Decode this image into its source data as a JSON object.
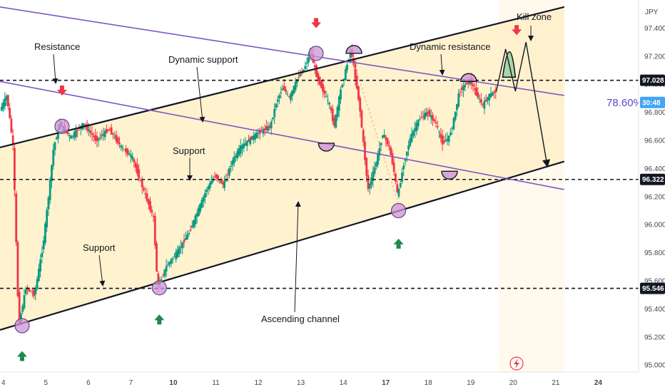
{
  "chart_data": {
    "type": "candlestick",
    "instrument_currency": "JPY",
    "yticks": [
      95.0,
      95.2,
      95.4,
      95.6,
      95.8,
      96.0,
      96.2,
      96.4,
      96.6,
      96.8,
      97.0,
      97.2,
      97.4
    ],
    "ylim": [
      94.95,
      97.6
    ],
    "xticks": [
      {
        "label": "4",
        "x": 4.0,
        "bold": false
      },
      {
        "label": "5",
        "x": 5.0,
        "bold": false
      },
      {
        "label": "6",
        "x": 6.0,
        "bold": false
      },
      {
        "label": "7",
        "x": 7.0,
        "bold": false
      },
      {
        "label": "10",
        "x": 8.0,
        "bold": true
      },
      {
        "label": "11",
        "x": 9.0,
        "bold": false
      },
      {
        "label": "12",
        "x": 10.0,
        "bold": false
      },
      {
        "label": "13",
        "x": 11.0,
        "bold": false
      },
      {
        "label": "14",
        "x": 12.0,
        "bold": false
      },
      {
        "label": "17",
        "x": 13.0,
        "bold": true
      },
      {
        "label": "18",
        "x": 14.0,
        "bold": false
      },
      {
        "label": "19",
        "x": 15.0,
        "bold": false
      },
      {
        "label": "20",
        "x": 16.0,
        "bold": false
      },
      {
        "label": "21",
        "x": 17.0,
        "bold": false
      },
      {
        "label": "24",
        "x": 18.0,
        "bold": true
      }
    ],
    "xlim": [
      3.92,
      18.95
    ],
    "candle_end_x": 15.6,
    "price_path": [
      [
        3.92,
        96.8
      ],
      [
        4.1,
        96.92
      ],
      [
        4.25,
        96.55
      ],
      [
        4.38,
        95.28
      ],
      [
        4.55,
        95.55
      ],
      [
        4.75,
        95.5
      ],
      [
        4.95,
        95.85
      ],
      [
        5.08,
        96.2
      ],
      [
        5.2,
        96.55
      ],
      [
        5.35,
        96.72
      ],
      [
        5.6,
        96.62
      ],
      [
        5.9,
        96.72
      ],
      [
        6.2,
        96.6
      ],
      [
        6.5,
        96.68
      ],
      [
        6.8,
        96.55
      ],
      [
        7.05,
        96.48
      ],
      [
        7.25,
        96.3
      ],
      [
        7.55,
        96.05
      ],
      [
        7.65,
        95.55
      ],
      [
        7.85,
        95.7
      ],
      [
        8.1,
        95.8
      ],
      [
        8.4,
        95.95
      ],
      [
        8.6,
        96.1
      ],
      [
        8.8,
        96.25
      ],
      [
        9.0,
        96.35
      ],
      [
        9.2,
        96.28
      ],
      [
        9.4,
        96.45
      ],
      [
        9.6,
        96.55
      ],
      [
        9.8,
        96.6
      ],
      [
        10.0,
        96.65
      ],
      [
        10.3,
        96.7
      ],
      [
        10.45,
        96.88
      ],
      [
        10.6,
        96.98
      ],
      [
        10.75,
        96.9
      ],
      [
        10.95,
        97.05
      ],
      [
        11.08,
        97.1
      ],
      [
        11.25,
        97.23
      ],
      [
        11.4,
        97.05
      ],
      [
        11.55,
        96.95
      ],
      [
        11.7,
        96.85
      ],
      [
        11.8,
        96.7
      ],
      [
        11.95,
        96.95
      ],
      [
        12.2,
        97.25
      ],
      [
        12.4,
        96.85
      ],
      [
        12.6,
        96.25
      ],
      [
        12.8,
        96.45
      ],
      [
        12.95,
        96.65
      ],
      [
        13.1,
        96.55
      ],
      [
        13.2,
        96.4
      ],
      [
        13.3,
        96.2
      ],
      [
        13.45,
        96.45
      ],
      [
        13.6,
        96.62
      ],
      [
        13.8,
        96.75
      ],
      [
        14.0,
        96.8
      ],
      [
        14.2,
        96.72
      ],
      [
        14.35,
        96.58
      ],
      [
        14.5,
        96.62
      ],
      [
        14.6,
        96.72
      ],
      [
        14.75,
        96.95
      ],
      [
        14.9,
        97.0
      ],
      [
        15.0,
        97.03
      ],
      [
        15.15,
        96.93
      ],
      [
        15.3,
        96.85
      ],
      [
        15.45,
        96.92
      ],
      [
        15.6,
        96.95
      ]
    ],
    "resistance_line": {
      "label": "Resistance",
      "y": 97.028
    },
    "support_line_upper": {
      "label": "Support",
      "y": 96.322
    },
    "support_line_lower": {
      "label": "Support",
      "y": 95.546
    },
    "ascending_channel": {
      "label": "Ascending channel",
      "upper": [
        [
          3.92,
          96.55
        ],
        [
          17.2,
          97.55
        ]
      ],
      "lower": [
        [
          3.92,
          95.25
        ],
        [
          17.2,
          96.45
        ]
      ]
    },
    "dynamic_resistance": {
      "label": "Dynamic resistance",
      "points": [
        [
          3.92,
          97.55
        ],
        [
          17.2,
          96.92
        ]
      ]
    },
    "dynamic_support": {
      "label": "Dynamic support",
      "points": [
        [
          3.92,
          97.02
        ],
        [
          17.2,
          96.25
        ]
      ]
    },
    "kill_zone": {
      "label": "Kill zone",
      "points": [
        [
          15.75,
          97.05
        ],
        [
          15.92,
          97.25
        ],
        [
          16.05,
          97.05
        ]
      ]
    },
    "projection_path": [
      [
        15.6,
        96.95
      ],
      [
        15.82,
        97.25
      ],
      [
        16.05,
        96.95
      ],
      [
        16.3,
        97.3
      ],
      [
        16.8,
        96.42
      ]
    ],
    "sell_arrows": [
      [
        5.38,
        96.92
      ],
      [
        11.36,
        97.4
      ],
      [
        16.08,
        97.35
      ]
    ],
    "buy_arrows": [
      [
        4.44,
        95.1
      ],
      [
        7.67,
        95.36
      ],
      [
        13.3,
        95.9
      ]
    ],
    "touch_circles": [
      [
        4.44,
        95.28
      ],
      [
        5.38,
        96.7
      ],
      [
        7.67,
        95.55
      ],
      [
        11.36,
        97.22
      ],
      [
        13.3,
        96.1
      ]
    ],
    "half_circles_top": [
      [
        12.25,
        97.22
      ],
      [
        14.95,
        97.02
      ]
    ],
    "half_circles_bottom": [
      [
        11.6,
        96.58
      ],
      [
        14.5,
        96.38
      ]
    ],
    "fib_label": "78.60%",
    "price_tags": [
      {
        "text": "97.028",
        "y": 97.028,
        "color": "#131722"
      },
      {
        "text": "30:48",
        "y": 96.87,
        "color": "#42a5f5"
      },
      {
        "text": "96.322",
        "y": 96.322,
        "color": "#131722"
      },
      {
        "text": "95.546",
        "y": 95.546,
        "color": "#131722"
      }
    ],
    "grid": false,
    "colors": {
      "channel_fill": "#fff1cc",
      "up_candle": "#089981",
      "down_candle": "#f23645",
      "channel_line": "#131722",
      "dynamic_line": "#7e57c2",
      "circle_fill": "#ce93d8",
      "kill_zone_fill": "#a5d6a7",
      "sell_arrow": "#f23645",
      "buy_arrow": "#1b8a4a",
      "fib_text": "#5c4ac7"
    }
  }
}
